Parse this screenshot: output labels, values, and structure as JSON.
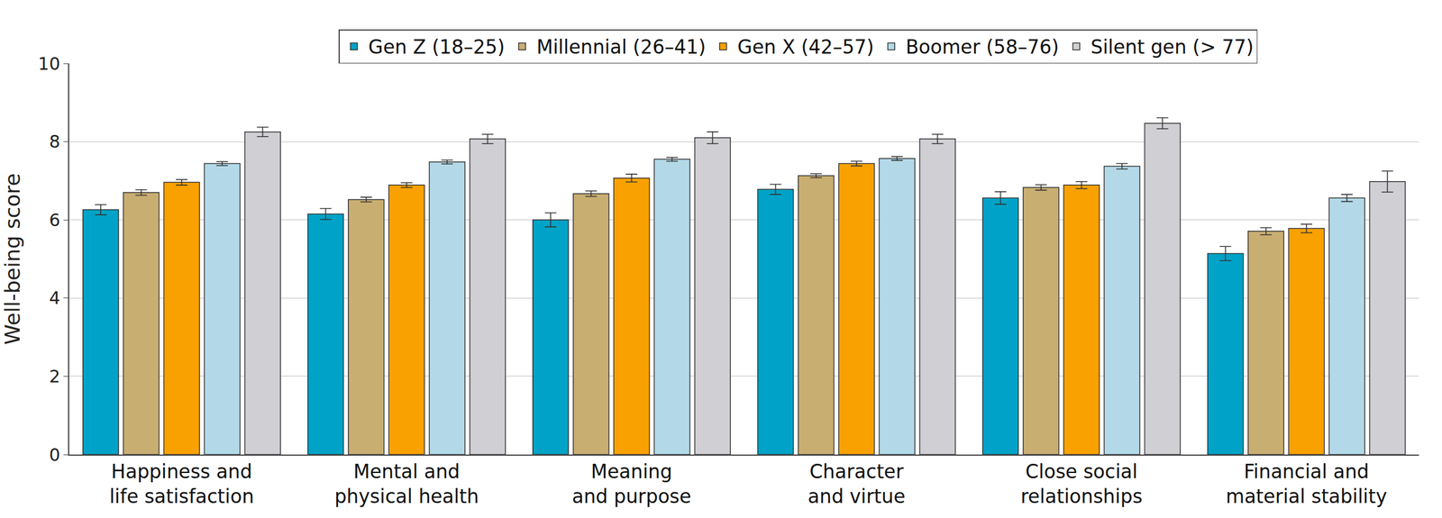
{
  "chart_data": {
    "type": "bar",
    "y_label": "Well-being score",
    "categories": [
      "Happiness and\nlife satisfaction",
      "Mental and\nphysical health",
      "Meaning\nand purpose",
      "Character\nand virtue",
      "Close social\nrelationships",
      "Financial and\nmaterial stability"
    ],
    "series": [
      {
        "name": "Gen Z (18–25)",
        "color": "#00a3c7",
        "values": [
          6.26,
          6.15,
          6.0,
          6.78,
          6.56,
          5.14
        ],
        "error": [
          0.13,
          0.14,
          0.18,
          0.13,
          0.16,
          0.18
        ]
      },
      {
        "name": "Millennial (26–41)",
        "color": "#c9ae72",
        "values": [
          6.7,
          6.52,
          6.67,
          7.13,
          6.83,
          5.71
        ],
        "error": [
          0.07,
          0.06,
          0.07,
          0.05,
          0.07,
          0.09
        ]
      },
      {
        "name": "Gen X (42–57)",
        "color": "#f9a100",
        "values": [
          6.96,
          6.89,
          7.07,
          7.44,
          6.89,
          5.78
        ],
        "error": [
          0.07,
          0.06,
          0.1,
          0.06,
          0.09,
          0.11
        ]
      },
      {
        "name": "Boomer (58–76)",
        "color": "#b3d9e8",
        "values": [
          7.44,
          7.48,
          7.55,
          7.57,
          7.37,
          6.56
        ],
        "error": [
          0.05,
          0.05,
          0.05,
          0.05,
          0.07,
          0.09
        ]
      },
      {
        "name": "Silent gen (> 77)",
        "color": "#cfcfd4",
        "values": [
          8.25,
          8.07,
          8.1,
          8.07,
          8.47,
          6.98
        ],
        "error": [
          0.12,
          0.12,
          0.15,
          0.12,
          0.14,
          0.27
        ]
      }
    ],
    "ylim": [
      0,
      10
    ],
    "yticks": [
      0,
      2,
      4,
      6,
      8,
      10
    ],
    "grid": true,
    "legend": "top"
  }
}
